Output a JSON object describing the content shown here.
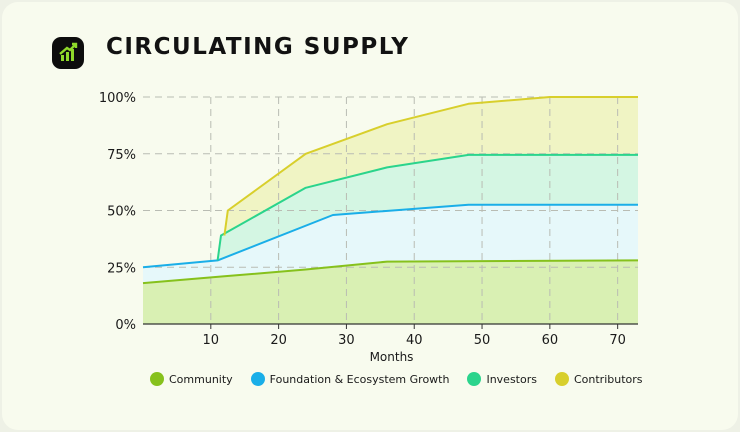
{
  "header": {
    "title": "CIRCULATING SUPPLY",
    "logo_icon": "trending-up-icon"
  },
  "chart_data": {
    "type": "area",
    "title": "CIRCULATING SUPPLY",
    "xlabel": "Months",
    "ylabel": "",
    "xlim": [
      0,
      73
    ],
    "ylim": [
      0,
      100
    ],
    "x_ticks": [
      10,
      20,
      30,
      40,
      50,
      60,
      70
    ],
    "y_ticks": [
      0,
      25,
      50,
      75,
      100
    ],
    "y_tick_labels": [
      "0%",
      "25%",
      "50%",
      "75%",
      "100%"
    ],
    "stacked": true,
    "grid": true,
    "legend_position": "bottom",
    "series": [
      {
        "name": "Community",
        "color": "#86c11c",
        "fill": "#d9f0b3",
        "points": [
          [
            0,
            18
          ],
          [
            12,
            21
          ],
          [
            24,
            24
          ],
          [
            36,
            27.5
          ],
          [
            73,
            28
          ]
        ]
      },
      {
        "name": "Foundation & Ecosystem Growth",
        "color": "#1aaee8",
        "fill": "#e6f8fa",
        "points": [
          [
            0,
            25
          ],
          [
            11,
            28
          ],
          [
            28,
            48
          ],
          [
            48,
            52.5
          ],
          [
            73,
            52.5
          ]
        ]
      },
      {
        "name": "Investors",
        "color": "#2bd48c",
        "fill": "#d4f6e3",
        "points": [
          [
            11,
            28
          ],
          [
            11.5,
            39
          ],
          [
            24,
            60
          ],
          [
            36,
            69
          ],
          [
            48,
            74.5
          ],
          [
            73,
            74.5
          ]
        ]
      },
      {
        "name": "Contributors",
        "color": "#d8cf2c",
        "fill": "#f0f4c4",
        "points": [
          [
            12,
            39
          ],
          [
            12.5,
            50
          ],
          [
            24,
            75
          ],
          [
            36,
            88
          ],
          [
            48,
            97
          ],
          [
            60,
            100
          ],
          [
            73,
            100
          ]
        ]
      }
    ]
  }
}
